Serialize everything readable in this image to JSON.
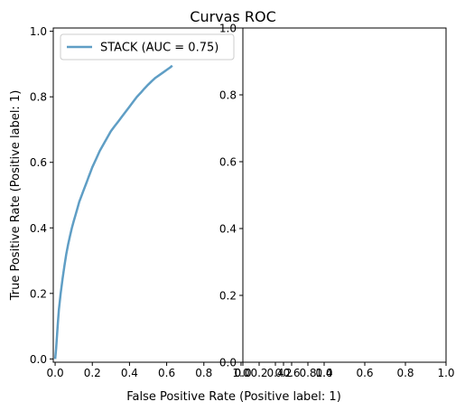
{
  "figure": {
    "title": "Curvas ROC"
  },
  "chart_data": [
    {
      "type": "line",
      "panel": "left",
      "xlabel": "False Positive Rate (Positive label: 1)",
      "ylabel": "True Positive Rate (Positive label: 1)",
      "xlim": [
        -0.01,
        1.01
      ],
      "ylim": [
        -0.01,
        1.01
      ],
      "xticks": [
        0.0,
        0.2,
        0.4,
        0.6,
        0.8,
        1.0
      ],
      "xtick_labels": [
        "0.0",
        "0.2",
        "0.4",
        "0.6",
        "0.8",
        "1.0"
      ],
      "yticks": [
        0.0,
        0.2,
        0.4,
        0.6,
        0.8,
        1.0
      ],
      "ytick_labels": [
        "0.0",
        "0.2",
        "0.4",
        "0.6",
        "0.8",
        "1.0"
      ],
      "legend": {
        "position": "top-left",
        "entries": [
          "STACK (AUC = 0.75)"
        ]
      },
      "series": [
        {
          "name": "STACK (AUC = 0.75)",
          "color": "#5f9ec5",
          "x": [
            0.0,
            0.005,
            0.01,
            0.015,
            0.02,
            0.03,
            0.04,
            0.05,
            0.06,
            0.07,
            0.08,
            0.09,
            0.1,
            0.11,
            0.12,
            0.13,
            0.14,
            0.15,
            0.16,
            0.17,
            0.18,
            0.19,
            0.2,
            0.22,
            0.24,
            0.26,
            0.28,
            0.3,
            0.32,
            0.34,
            0.36,
            0.38,
            0.4,
            0.42,
            0.44,
            0.46,
            0.48,
            0.5,
            0.52,
            0.54,
            0.56,
            0.58,
            0.6,
            0.62,
            0.63
          ],
          "y": [
            0.0,
            0.03,
            0.07,
            0.11,
            0.15,
            0.2,
            0.245,
            0.285,
            0.32,
            0.35,
            0.375,
            0.4,
            0.42,
            0.44,
            0.46,
            0.48,
            0.495,
            0.51,
            0.525,
            0.54,
            0.555,
            0.57,
            0.585,
            0.61,
            0.635,
            0.655,
            0.675,
            0.695,
            0.71,
            0.725,
            0.74,
            0.755,
            0.77,
            0.785,
            0.8,
            0.812,
            0.825,
            0.837,
            0.848,
            0.858,
            0.866,
            0.874,
            0.882,
            0.89,
            0.895
          ]
        }
      ]
    },
    {
      "type": "line",
      "panel": "right",
      "xlim": [
        0.0,
        1.0
      ],
      "ylim": [
        0.0,
        1.0
      ],
      "xticks": [
        0.0,
        0.2,
        0.4,
        0.6,
        0.8,
        1.0
      ],
      "xtick_labels": [
        "0.0",
        "0.2",
        "0.4",
        "0.6",
        "0.8",
        "1.0"
      ],
      "yticks": [
        0.0,
        0.2,
        0.4,
        0.6,
        0.8,
        1.0
      ],
      "ytick_labels": [
        "0.0",
        "0.2",
        "0.4",
        "0.6",
        "0.8",
        "1.0"
      ],
      "series": []
    },
    {
      "type": "line",
      "panel": "overlay",
      "xlim": [
        0.0,
        1.0
      ],
      "xticks": [
        0.0,
        0.2,
        0.4,
        0.6,
        0.8,
        1.0
      ],
      "xtick_labels": [
        "0.0",
        "0.2",
        "0.4",
        "0.6",
        "0.8",
        "1.0"
      ],
      "series": []
    }
  ]
}
